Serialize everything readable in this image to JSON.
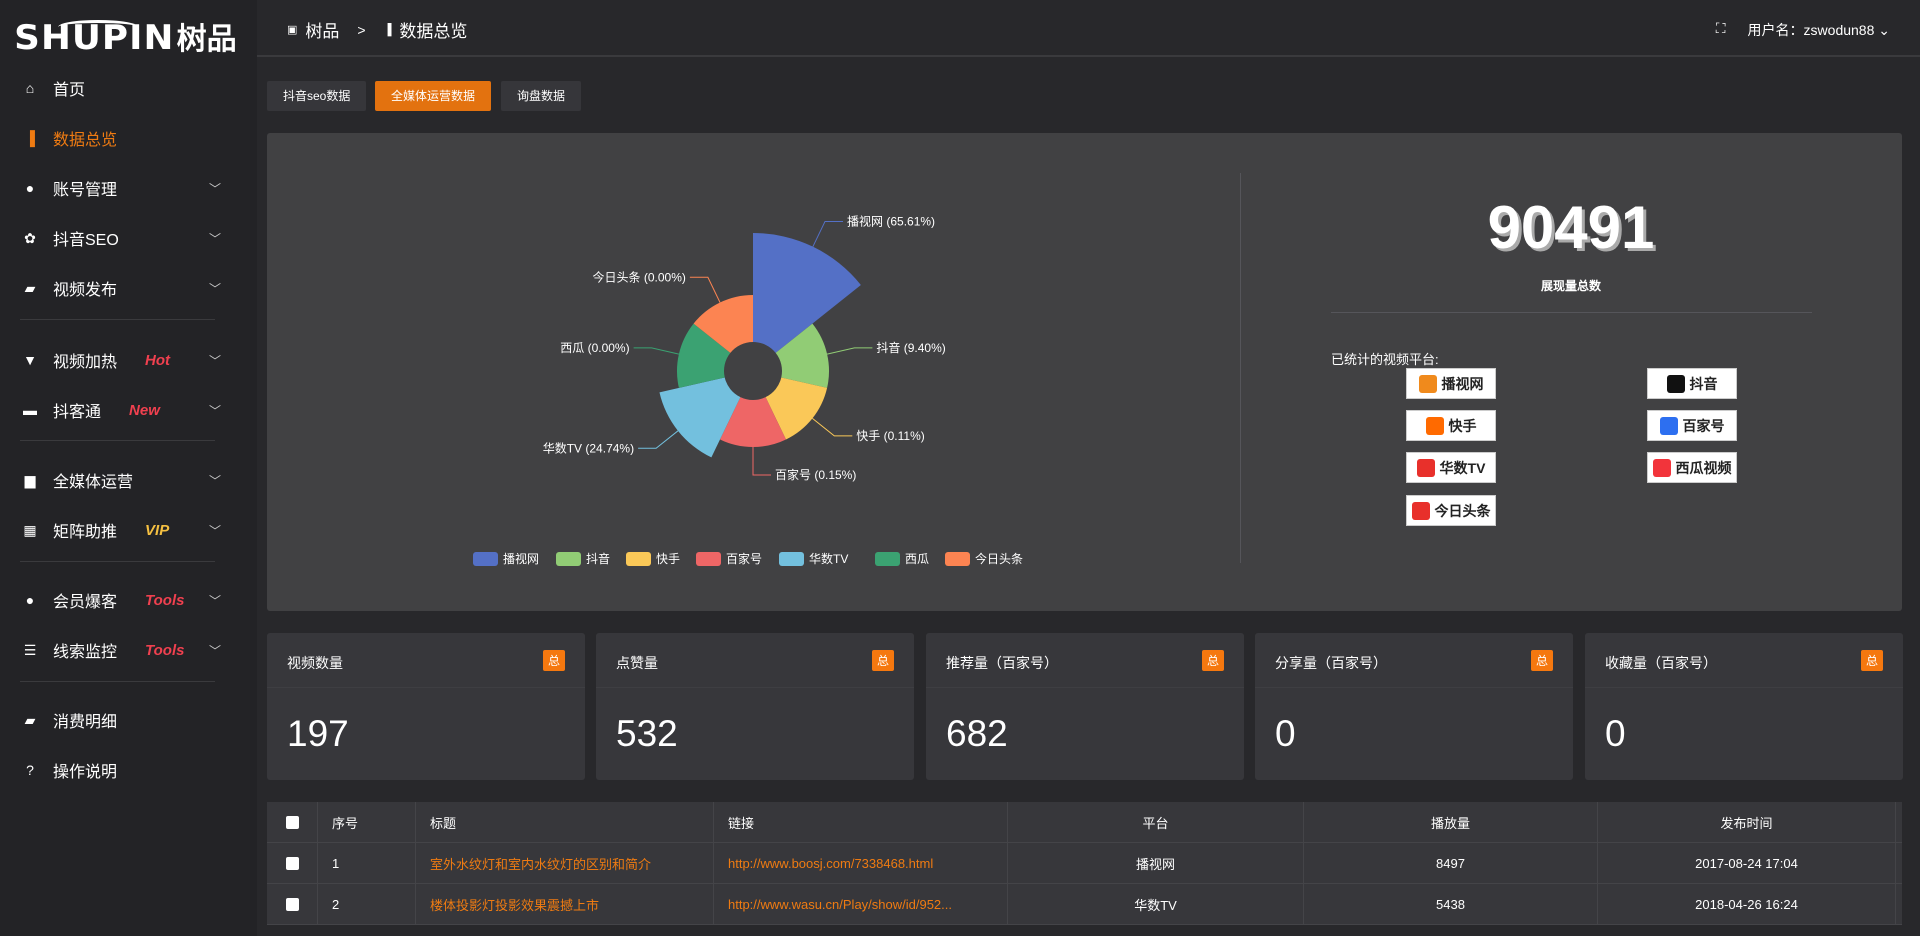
{
  "brand": {
    "en": "SHUPIN",
    "cn": "树品"
  },
  "breadcrumb": {
    "root": "树品",
    "sep": ">",
    "current": "数据总览"
  },
  "user": {
    "label": "用户名：zswodun88",
    "chevron": "⌄"
  },
  "sidebar": {
    "items": [
      {
        "label": "首页",
        "icon": "home-icon",
        "glyph": "⌂"
      },
      {
        "label": "数据总览",
        "icon": "bar-chart-icon",
        "glyph": "▐",
        "active": true
      },
      {
        "label": "账号管理",
        "icon": "user-icon",
        "glyph": "●",
        "chev": true
      },
      {
        "label": "抖音SEO",
        "icon": "gear-icon",
        "glyph": "✿",
        "chev": true
      },
      {
        "label": "视频发布",
        "icon": "camera-icon",
        "glyph": "▰",
        "chev": true
      },
      {
        "label": "视频加热",
        "icon": "heater-icon",
        "glyph": "▼",
        "chev": true,
        "badge": "Hot",
        "badge_color": "#f0404f"
      },
      {
        "label": "抖客通",
        "icon": "chat-icon",
        "glyph": "▬",
        "chev": true,
        "badge": "New",
        "badge_color": "#f0404f"
      },
      {
        "label": "全媒体运营",
        "icon": "monitor-icon",
        "glyph": "▆",
        "chev": true
      },
      {
        "label": "矩阵助推",
        "icon": "grid-icon",
        "glyph": "▦",
        "chev": true,
        "badge": "VIP",
        "badge_color": "#f5c041"
      },
      {
        "label": "会员爆客",
        "icon": "member-icon",
        "glyph": "●",
        "chev": true,
        "badge": "Tools",
        "badge_color": "#f0404f"
      },
      {
        "label": "线索监控",
        "icon": "sliders-icon",
        "glyph": "☰",
        "chev": true,
        "badge": "Tools",
        "badge_color": "#f0404f"
      },
      {
        "label": "消费明细",
        "icon": "wallet-icon",
        "glyph": "▰"
      },
      {
        "label": "操作说明",
        "icon": "help-icon",
        "glyph": "?"
      }
    ]
  },
  "tabs": [
    {
      "label": "抖音seo数据"
    },
    {
      "label": "全媒体运营数据",
      "active": true
    },
    {
      "label": "询盘数据"
    }
  ],
  "chart_data": {
    "type": "pie",
    "rose": true,
    "categories": [
      "播视网",
      "抖音",
      "快手",
      "百家号",
      "华数TV",
      "西瓜",
      "今日头条"
    ],
    "values": [
      65.61,
      9.4,
      0.11,
      0.15,
      24.74,
      0.0,
      0.0
    ],
    "labels": [
      "播视网 (65.61%)",
      "抖音 (9.40%)",
      "快手 (0.11%)",
      "百家号 (0.15%)",
      "华数TV (24.74%)",
      "西瓜 (0.00%)",
      "今日头条 (0.00%)"
    ],
    "colors": [
      "#5470c6",
      "#91cc75",
      "#fac858",
      "#ee6666",
      "#73c0de",
      "#3ba272",
      "#fc8452"
    ],
    "legend": "bottom"
  },
  "summary": {
    "total": "90491",
    "total_label": "展现量总数",
    "platforms_title": "已统计的视频平台:"
  },
  "platforms": [
    {
      "name": "播视网",
      "color": "#f08a1c"
    },
    {
      "name": "抖音",
      "color": "#111"
    },
    {
      "name": "快手",
      "color": "#ff6a00"
    },
    {
      "name": "百家号",
      "color": "#2d6ff0"
    },
    {
      "name": "华数TV",
      "color": "#e8302b"
    },
    {
      "name": "西瓜视频",
      "color": "#f2343b"
    },
    {
      "name": "今日头条",
      "color": "#e8302b"
    }
  ],
  "cards": [
    {
      "title": "视频数量",
      "tag": "总",
      "value": "197"
    },
    {
      "title": "点赞量",
      "tag": "总",
      "value": "532"
    },
    {
      "title": "推荐量（百家号）",
      "tag": "总",
      "value": "682"
    },
    {
      "title": "分享量（百家号）",
      "tag": "总",
      "value": "0"
    },
    {
      "title": "收藏量（百家号）",
      "tag": "总",
      "value": "0"
    }
  ],
  "table": {
    "headers": [
      "序号",
      "标题",
      "链接",
      "平台",
      "播放量",
      "发布时间"
    ],
    "rows": [
      [
        "1",
        "室外水纹灯和室内水纹灯的区别和简介",
        "http://www.boosj.com/7338468.html",
        "播视网",
        "8497",
        "2017-08-24 17:04"
      ],
      [
        "2",
        "楼体投影灯投影效果震撼上市",
        "http://www.wasu.cn/Play/show/id/952...",
        "华数TV",
        "5438",
        "2018-04-26 16:24"
      ]
    ]
  }
}
